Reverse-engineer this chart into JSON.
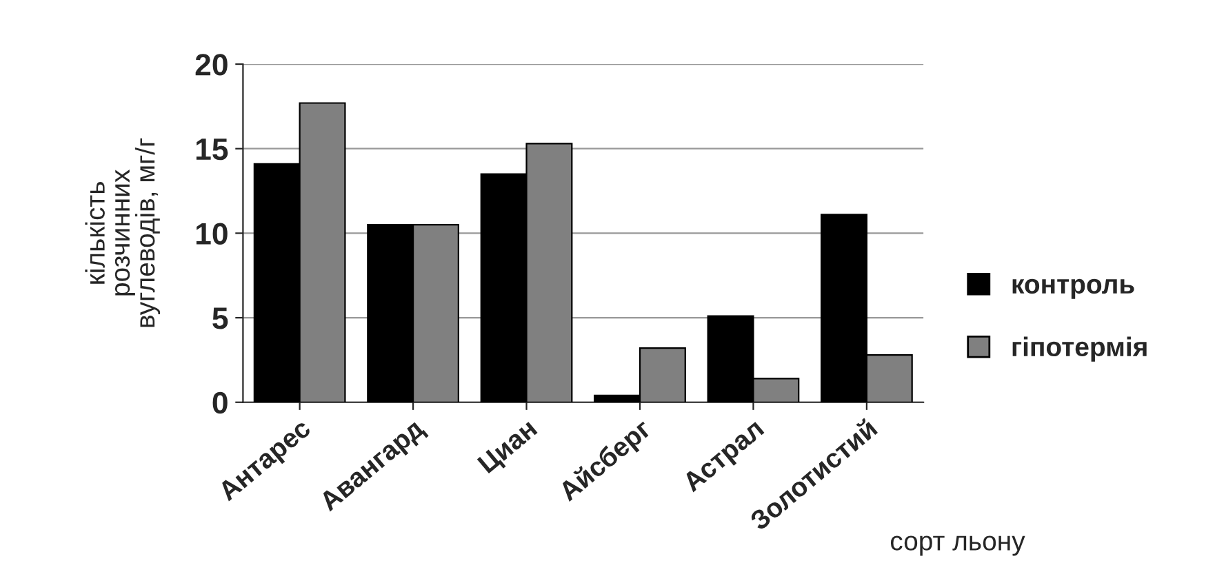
{
  "chart_data": {
    "type": "bar",
    "categories": [
      "Антарес",
      "Авангард",
      "Циан",
      "Айсберг",
      "Астрал",
      "Золотистий"
    ],
    "series": [
      {
        "name": "контроль",
        "color": "#000000",
        "values": [
          14.1,
          10.5,
          13.5,
          0.4,
          5.1,
          11.1
        ]
      },
      {
        "name": "гіпотермія",
        "color": "#808080",
        "values": [
          17.7,
          10.5,
          15.3,
          3.2,
          1.4,
          2.8
        ]
      }
    ],
    "xlabel": "сорт льону",
    "ylabel": "кількість\nрозчинних\nвуглеводів, мг/г",
    "ylim": [
      0,
      20
    ],
    "yticks": [
      0,
      5,
      10,
      15,
      20
    ],
    "grid": "y",
    "legend": "right"
  }
}
